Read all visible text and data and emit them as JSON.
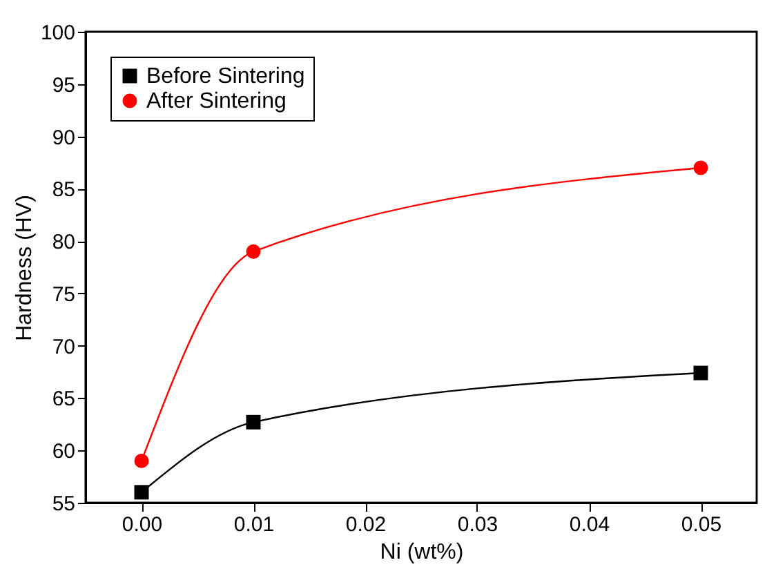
{
  "chart_data": {
    "type": "line",
    "xlabel": "Ni (wt%)",
    "ylabel": "Hardness (HV)",
    "x": [
      0,
      0.01,
      0.05
    ],
    "series": [
      {
        "name": "Before Sintering",
        "color": "#000000",
        "marker": "square",
        "values": [
          56,
          62.7,
          67.4
        ]
      },
      {
        "name": "After Sintering",
        "color": "#ff0000",
        "marker": "circle",
        "values": [
          59,
          79,
          87
        ]
      }
    ],
    "xlim": [
      -0.005,
      0.055
    ],
    "xticks": [
      {
        "value": 0,
        "label": "0.00"
      },
      {
        "value": 0.01,
        "label": "0.01"
      },
      {
        "value": 0.02,
        "label": "0.02"
      },
      {
        "value": 0.03,
        "label": "0.03"
      },
      {
        "value": 0.04,
        "label": "0.04"
      },
      {
        "value": 0.05,
        "label": "0.05"
      }
    ],
    "ylim": [
      55,
      100
    ],
    "yticks": [
      55,
      60,
      65,
      70,
      75,
      80,
      85,
      90,
      95,
      100
    ],
    "grid": false,
    "legend": "top left",
    "line_style": "solid"
  }
}
